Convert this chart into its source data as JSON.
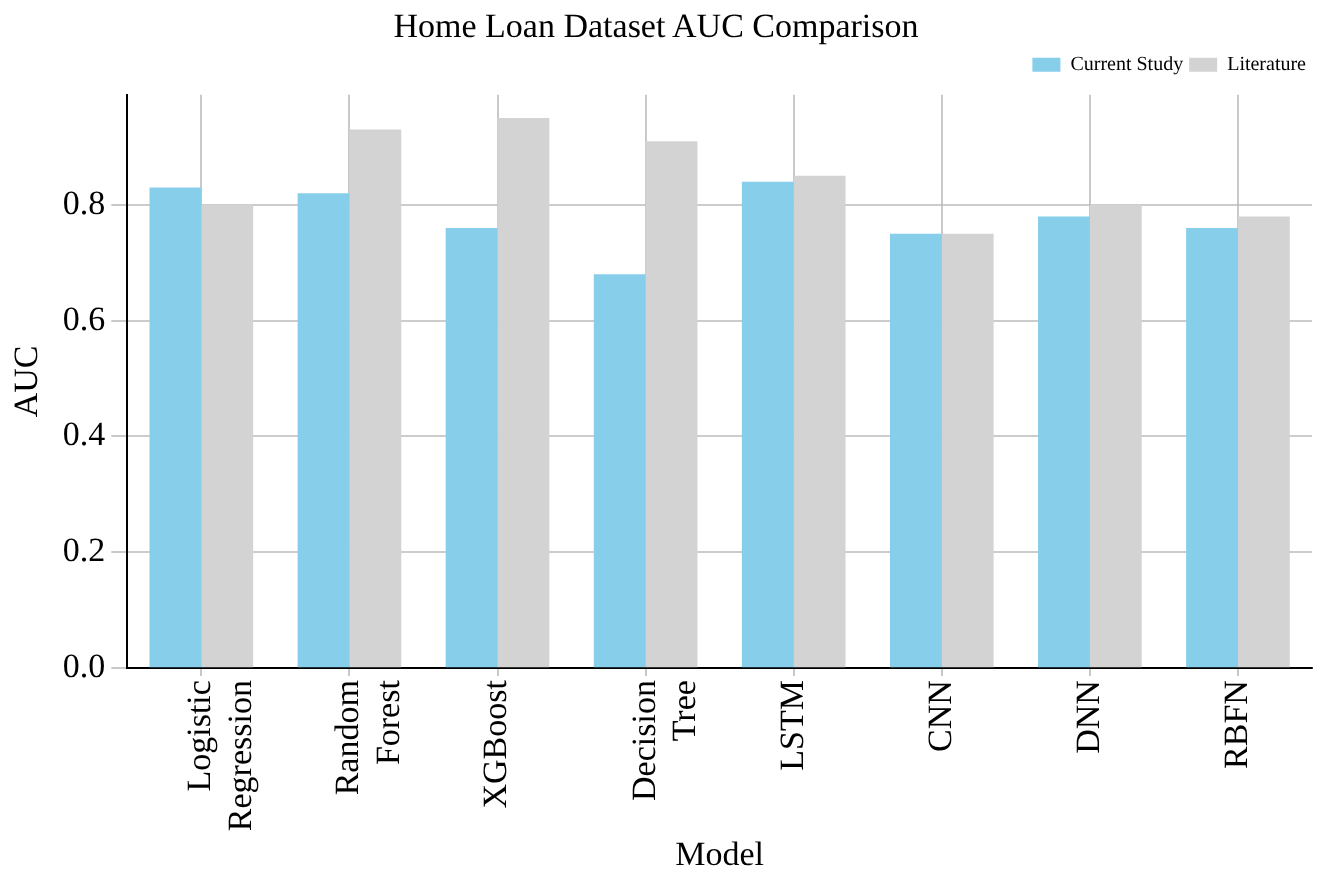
{
  "chart_data": {
    "type": "bar",
    "title": "Home Loan Dataset AUC Comparison",
    "xlabel": "Model",
    "ylabel": "AUC",
    "categories": [
      "Logistic Regression",
      "Random Forest",
      "XGBoost",
      "Decision Tree",
      "LSTM",
      "CNN",
      "DNN",
      "RBFN"
    ],
    "series": [
      {
        "name": "Current Study",
        "color": "#87ceeb",
        "values": [
          0.83,
          0.82,
          0.76,
          0.68,
          0.84,
          0.75,
          0.78,
          0.76
        ]
      },
      {
        "name": "Literature",
        "color": "#d3d3d3",
        "values": [
          0.8,
          0.93,
          0.95,
          0.91,
          0.85,
          0.75,
          0.8,
          0.78
        ]
      }
    ],
    "ylim": [
      0,
      0.99
    ],
    "yticks": [
      {
        "value": 0,
        "label": "0.0"
      },
      0.2,
      0.4,
      0.6,
      0.8
    ],
    "grid": true,
    "legend": "top right"
  }
}
